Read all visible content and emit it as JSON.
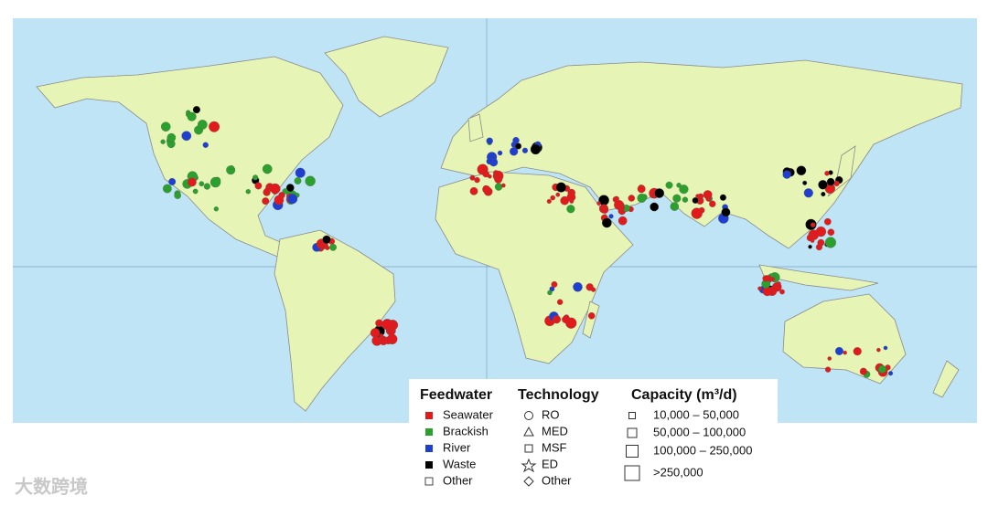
{
  "map": {
    "legend": {
      "feedwater": {
        "title": "Feedwater",
        "items": [
          "Seawater",
          "Brackish",
          "River",
          "Waste",
          "Other"
        ]
      },
      "technology": {
        "title": "Technology",
        "items": [
          "RO",
          "MED",
          "MSF",
          "ED",
          "Other"
        ]
      },
      "capacity": {
        "title": "Capacity (m³/d)",
        "items": [
          "10,000 – 50,000",
          "50,000 – 100,000",
          "100,000 – 250,000",
          ">250,000"
        ]
      }
    }
  },
  "watermark": "大数跨境"
}
